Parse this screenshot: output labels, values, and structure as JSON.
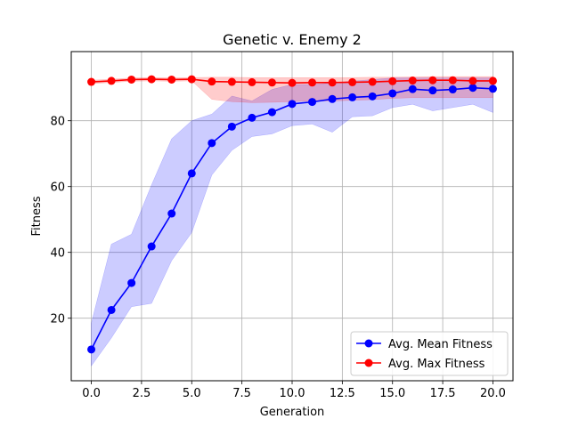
{
  "chart_data": {
    "type": "line",
    "title": "Genetic v. Enemy 2",
    "xlabel": "Generation",
    "ylabel": "Fitness",
    "xlim": [
      -1,
      21
    ],
    "ylim": [
      1,
      101
    ],
    "xticks": [
      0.0,
      2.5,
      5.0,
      7.5,
      10.0,
      12.5,
      15.0,
      17.5,
      20.0
    ],
    "xtick_labels": [
      "0.0",
      "2.5",
      "5.0",
      "7.5",
      "10.0",
      "12.5",
      "15.0",
      "17.5",
      "20.0"
    ],
    "yticks": [
      20,
      40,
      60,
      80
    ],
    "ytick_labels": [
      "20",
      "40",
      "60",
      "80"
    ],
    "grid": true,
    "legend_position": "bottom-right",
    "x": [
      0,
      1,
      2,
      3,
      4,
      5,
      6,
      7,
      8,
      9,
      10,
      11,
      12,
      13,
      14,
      15,
      16,
      17,
      18,
      19,
      20
    ],
    "series": [
      {
        "name": "Avg. Mean Fitness",
        "color": "#0000ff",
        "band_color": "#0000ff",
        "values": [
          10.5,
          22.5,
          30.7,
          41.8,
          51.8,
          64.0,
          73.2,
          78.2,
          80.9,
          82.6,
          85.1,
          85.7,
          86.6,
          87.1,
          87.4,
          88.3,
          89.6,
          89.2,
          89.5,
          90.0,
          89.7
        ],
        "lower": [
          5.5,
          14.0,
          23.5,
          24.5,
          37.5,
          46.0,
          63.5,
          71.0,
          75.2,
          76.0,
          78.5,
          79.0,
          76.5,
          81.2,
          81.5,
          84.0,
          85.0,
          83.0,
          84.0,
          85.0,
          82.5
        ],
        "upper": [
          18.5,
          42.5,
          45.5,
          60.5,
          74.5,
          80.0,
          82.0,
          87.5,
          86.0,
          89.5,
          91.0,
          91.0,
          91.5,
          92.0,
          92.5,
          93.0,
          93.0,
          93.0,
          93.0,
          93.0,
          93.0
        ]
      },
      {
        "name": "Avg. Max Fitness",
        "color": "#ff0000",
        "band_color": "#ff0000",
        "values": [
          91.8,
          92.1,
          92.5,
          92.6,
          92.5,
          92.6,
          91.9,
          91.8,
          91.7,
          91.6,
          91.5,
          91.6,
          91.6,
          91.7,
          91.8,
          92.0,
          92.2,
          92.3,
          92.3,
          92.1,
          92.1
        ],
        "lower": [
          91.3,
          91.6,
          92.0,
          92.1,
          92.0,
          92.1,
          86.5,
          85.8,
          85.5,
          85.6,
          85.8,
          86.0,
          86.0,
          86.2,
          86.4,
          86.8,
          87.0,
          87.0,
          87.0,
          87.0,
          87.0
        ],
        "upper": [
          92.3,
          92.6,
          93.0,
          93.1,
          93.0,
          93.1,
          93.2,
          93.2,
          93.1,
          93.1,
          93.1,
          93.1,
          93.1,
          93.1,
          93.2,
          93.2,
          93.3,
          93.4,
          93.4,
          93.4,
          93.4
        ]
      }
    ]
  }
}
